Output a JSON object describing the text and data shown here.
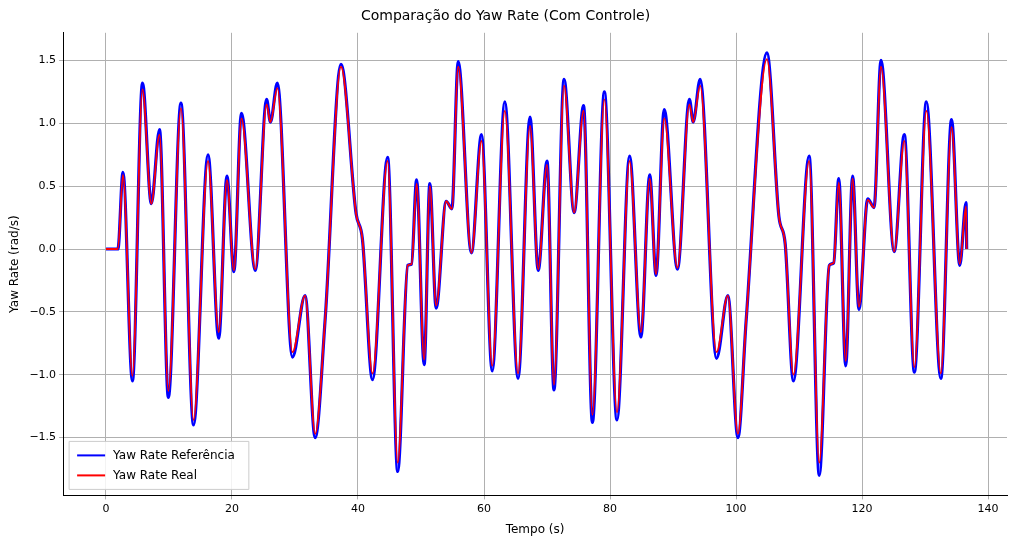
{
  "chart_data": {
    "type": "line",
    "title": "Comparação do Yaw Rate (Com Controle)",
    "xlabel": "Tempo (s)",
    "ylabel": "Yaw Rate (rad/s)",
    "x": [
      0,
      1.9,
      2.7,
      4.2,
      5.8,
      7.2,
      8.5,
      9.9,
      11.9,
      13.9,
      16.2,
      17.9,
      19.2,
      20.3,
      21.5,
      23.7,
      25.5,
      26.1,
      27.2,
      29.6,
      31.6,
      33.2,
      34.8,
      37.3,
      39.7,
      40.7,
      42.3,
      44.7,
      46.3,
      47.9,
      48.5,
      49.3,
      50.5,
      51.4,
      52.4,
      54.0,
      54.9,
      55.9,
      58.0,
      59.6,
      61.3,
      63.3,
      65.4,
      67.3,
      68.6,
      70.0,
      71.1,
      72.7,
      74.3,
      75.8,
      77.2,
      79.1,
      81.1,
      83.1,
      84.9,
      86.3,
      87.3,
      88.6,
      90.7,
      92.6,
      93.2,
      94.3,
      96.9,
      98.7,
      100.3,
      101.6,
      104.9,
      106.8,
      107.8,
      109.1,
      111.6,
      113.2,
      114.8,
      115.5,
      116.3,
      117.4,
      118.5,
      119.5,
      120.9,
      121.9,
      123.0,
      125.1,
      126.7,
      128.3,
      130.2,
      132.5,
      134.2,
      135.5,
      136.5,
      136.6
    ],
    "series": [
      {
        "name": "Yaw Rate Referência",
        "color": "#0000ff",
        "values": [
          0,
          0,
          0.61,
          -1.05,
          1.32,
          0.36,
          0.95,
          -1.18,
          1.16,
          -1.4,
          0.75,
          -0.71,
          0.58,
          -0.18,
          1.08,
          -0.17,
          1.19,
          1.01,
          1.32,
          -0.86,
          -0.37,
          -1.5,
          -0.55,
          1.47,
          0.28,
          0.08,
          -1.04,
          0.73,
          -1.77,
          -0.13,
          -0.12,
          0.55,
          -0.92,
          0.52,
          -0.47,
          0.38,
          0.32,
          1.49,
          -0.03,
          0.91,
          -0.97,
          1.17,
          -1.03,
          1.05,
          -0.17,
          0.7,
          -1.12,
          1.35,
          0.29,
          1.14,
          -1.38,
          1.25,
          -1.36,
          0.74,
          -0.7,
          0.59,
          -0.21,
          1.11,
          -0.16,
          1.19,
          1.01,
          1.35,
          -0.87,
          -0.37,
          -1.5,
          -0.57,
          1.56,
          0.26,
          0.04,
          -1.05,
          0.74,
          -1.8,
          -0.13,
          -0.11,
          0.56,
          -0.93,
          0.58,
          -0.48,
          0.4,
          0.33,
          1.5,
          -0.02,
          0.91,
          -0.98,
          1.17,
          -1.03,
          1.03,
          -0.13,
          0.37,
          0.0
        ]
      },
      {
        "name": "Yaw Rate Real",
        "color": "#ff0000",
        "values": [
          0,
          0,
          0.59,
          -1.01,
          1.27,
          0.36,
          0.91,
          -1.13,
          1.12,
          -1.36,
          0.7,
          -0.66,
          0.55,
          -0.17,
          1.04,
          -0.16,
          1.15,
          1.01,
          1.28,
          -0.82,
          -0.37,
          -1.47,
          -0.55,
          1.45,
          0.28,
          0.08,
          -0.99,
          0.7,
          -1.7,
          -0.13,
          -0.12,
          0.52,
          -0.88,
          0.5,
          -0.45,
          0.38,
          0.32,
          1.45,
          -0.03,
          0.86,
          -0.93,
          1.1,
          -0.99,
          0.98,
          -0.16,
          0.67,
          -1.08,
          1.3,
          0.29,
          1.1,
          -1.32,
          1.19,
          -1.3,
          0.7,
          -0.66,
          0.56,
          -0.2,
          1.04,
          -0.15,
          1.15,
          1.01,
          1.3,
          -0.82,
          -0.37,
          -1.47,
          -0.57,
          1.51,
          0.26,
          0.04,
          -1.0,
          0.7,
          -1.7,
          -0.13,
          -0.11,
          0.53,
          -0.89,
          0.56,
          -0.46,
          0.39,
          0.33,
          1.45,
          -0.02,
          0.86,
          -0.94,
          1.1,
          -0.99,
          0.97,
          -0.12,
          0.34,
          0.0
        ]
      }
    ],
    "xlim": [
      -6.8,
      143
    ],
    "xticks": [
      0,
      20,
      40,
      60,
      80,
      100,
      120,
      140
    ],
    "ylim": [
      -1.96,
      1.72
    ],
    "yticks": [
      {
        "value": -1.5,
        "label": "−1.5"
      },
      {
        "value": -1,
        "label": "−1.0"
      },
      {
        "value": -0.5,
        "label": "−0.5"
      },
      {
        "value": 0,
        "label": "0.0"
      },
      {
        "value": 0.5,
        "label": "0.5"
      },
      {
        "value": 1,
        "label": "1.0"
      },
      {
        "value": 1.5,
        "label": "1.5"
      }
    ],
    "grid": true,
    "legend": "bottom left",
    "line_style": "solid",
    "marker": "none"
  }
}
